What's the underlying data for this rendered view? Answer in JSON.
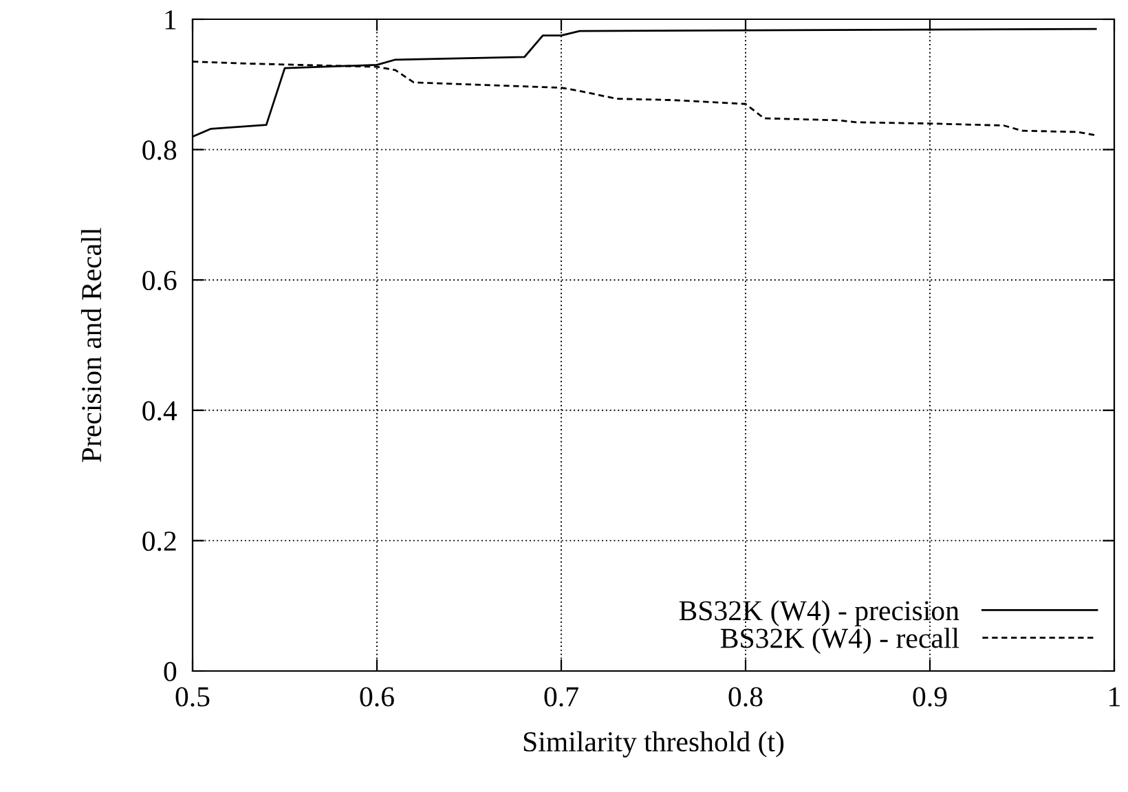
{
  "chart_data": {
    "type": "line",
    "xlabel": "Similarity threshold (t)",
    "ylabel": "Precision and Recall",
    "xlim": [
      0.5,
      1
    ],
    "xticks": [
      0.5,
      0.6,
      0.7,
      0.8,
      0.9,
      1
    ],
    "ylim": [
      0,
      1
    ],
    "yticks": [
      0,
      0.2,
      0.4,
      0.6,
      0.8,
      1
    ],
    "grid": true,
    "legend": "bottom right",
    "marker": "none",
    "series": [
      {
        "name": "BS32K (W4) - precision",
        "color": "#000000",
        "line_style": "solid",
        "x": [
          0.5,
          0.51,
          0.54,
          0.55,
          0.6,
          0.61,
          0.68,
          0.69,
          0.7,
          0.71,
          0.99
        ],
        "values": [
          0.82,
          0.832,
          0.838,
          0.925,
          0.93,
          0.938,
          0.942,
          0.975,
          0.975,
          0.982,
          0.985
        ]
      },
      {
        "name": "BS32K (W4) - recall",
        "color": "#000000",
        "line_style": "dashed",
        "x": [
          0.5,
          0.53,
          0.6,
          0.61,
          0.62,
          0.7,
          0.71,
          0.73,
          0.76,
          0.8,
          0.81,
          0.85,
          0.86,
          0.9,
          0.94,
          0.95,
          0.98,
          0.99
        ],
        "values": [
          0.935,
          0.932,
          0.927,
          0.922,
          0.903,
          0.895,
          0.89,
          0.878,
          0.876,
          0.87,
          0.848,
          0.845,
          0.842,
          0.84,
          0.837,
          0.829,
          0.827,
          0.822
        ]
      }
    ]
  }
}
